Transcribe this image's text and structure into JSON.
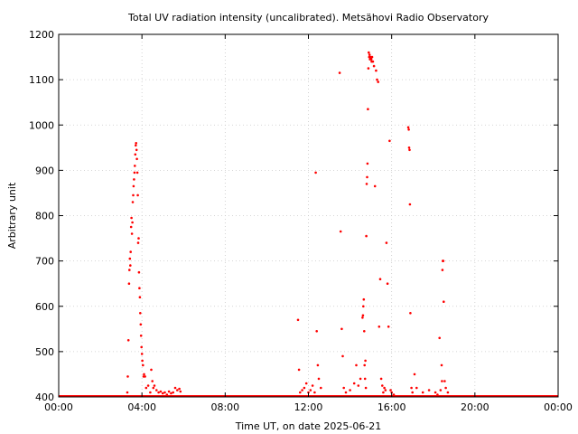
{
  "chart_data": {
    "type": "scatter",
    "title": "Total UV radiation intensity (uncalibrated). Metsähovi Radio Observatory",
    "xlabel": "Time UT, on date 2025-06-21",
    "ylabel": "Arbitrary unit",
    "xlim": [
      0,
      24
    ],
    "ylim": [
      400,
      1200
    ],
    "x_ticks": [
      {
        "value": 0,
        "label": "00:00"
      },
      {
        "value": 4,
        "label": "04:00"
      },
      {
        "value": 8,
        "label": "08:00"
      },
      {
        "value": 12,
        "label": "12:00"
      },
      {
        "value": 16,
        "label": "16:00"
      },
      {
        "value": 20,
        "label": "20:00"
      },
      {
        "value": 24,
        "label": "00:00"
      }
    ],
    "y_ticks": [
      {
        "value": 400,
        "label": "400"
      },
      {
        "value": 500,
        "label": "500"
      },
      {
        "value": 600,
        "label": "600"
      },
      {
        "value": 700,
        "label": "700"
      },
      {
        "value": 800,
        "label": "800"
      },
      {
        "value": 900,
        "label": "900"
      },
      {
        "value": 1000,
        "label": "1000"
      },
      {
        "value": 1100,
        "label": "1100"
      },
      {
        "value": 1200,
        "label": "1200"
      }
    ],
    "grid": true,
    "series_color": "#ff0000",
    "baseline": {
      "value": 402,
      "x_start": 0,
      "x_end": 24
    },
    "series": [
      {
        "points": [
          [
            3.3,
            410
          ],
          [
            3.32,
            445
          ],
          [
            3.35,
            525
          ],
          [
            3.38,
            650
          ],
          [
            3.4,
            680
          ],
          [
            3.42,
            705
          ],
          [
            3.44,
            690
          ],
          [
            3.46,
            720
          ],
          [
            3.48,
            775
          ],
          [
            3.5,
            795
          ],
          [
            3.52,
            760
          ],
          [
            3.54,
            785
          ],
          [
            3.56,
            830
          ],
          [
            3.58,
            845
          ],
          [
            3.6,
            865
          ],
          [
            3.62,
            880
          ],
          [
            3.64,
            895
          ],
          [
            3.66,
            910
          ],
          [
            3.68,
            935
          ],
          [
            3.7,
            955
          ],
          [
            3.72,
            960
          ],
          [
            3.74,
            945
          ],
          [
            3.76,
            925
          ],
          [
            3.78,
            895
          ],
          [
            3.8,
            845
          ],
          [
            3.82,
            740
          ],
          [
            3.84,
            750
          ],
          [
            3.86,
            675
          ],
          [
            3.88,
            640
          ],
          [
            3.9,
            620
          ],
          [
            3.92,
            585
          ],
          [
            3.94,
            560
          ],
          [
            3.96,
            535
          ],
          [
            3.98,
            510
          ],
          [
            4.0,
            495
          ],
          [
            4.02,
            480
          ],
          [
            4.05,
            470
          ],
          [
            4.08,
            445
          ],
          [
            4.1,
            450
          ],
          [
            4.15,
            445
          ],
          [
            4.2,
            420
          ],
          [
            4.3,
            425
          ],
          [
            4.4,
            410
          ],
          [
            4.45,
            460
          ],
          [
            4.5,
            435
          ],
          [
            4.55,
            420
          ],
          [
            4.6,
            425
          ],
          [
            4.7,
            415
          ],
          [
            4.8,
            410
          ],
          [
            4.9,
            412
          ],
          [
            5.0,
            408
          ],
          [
            5.1,
            410
          ],
          [
            5.2,
            405
          ],
          [
            5.3,
            412
          ],
          [
            5.4,
            408
          ],
          [
            5.5,
            410
          ],
          [
            5.6,
            420
          ],
          [
            5.7,
            415
          ],
          [
            5.8,
            418
          ],
          [
            5.85,
            412
          ]
        ]
      },
      {
        "points": [
          [
            11.5,
            570
          ],
          [
            11.55,
            460
          ],
          [
            11.6,
            410
          ],
          [
            11.7,
            415
          ],
          [
            11.8,
            420
          ],
          [
            11.9,
            430
          ],
          [
            12.0,
            410
          ],
          [
            12.1,
            415
          ],
          [
            12.2,
            425
          ],
          [
            12.3,
            410
          ],
          [
            12.35,
            895
          ],
          [
            12.4,
            545
          ],
          [
            12.45,
            470
          ],
          [
            12.5,
            440
          ],
          [
            12.6,
            420
          ],
          [
            13.5,
            1115
          ],
          [
            13.55,
            765
          ],
          [
            13.6,
            550
          ],
          [
            13.65,
            490
          ],
          [
            13.7,
            420
          ],
          [
            13.8,
            410
          ],
          [
            14.0,
            415
          ],
          [
            14.2,
            430
          ],
          [
            14.3,
            470
          ],
          [
            14.4,
            425
          ],
          [
            14.5,
            440
          ],
          [
            14.6,
            575
          ],
          [
            14.62,
            580
          ],
          [
            14.64,
            600
          ],
          [
            14.66,
            615
          ],
          [
            14.68,
            545
          ],
          [
            14.7,
            470
          ],
          [
            14.72,
            440
          ],
          [
            14.74,
            480
          ],
          [
            14.76,
            420
          ],
          [
            14.78,
            755
          ],
          [
            14.8,
            870
          ],
          [
            14.82,
            885
          ],
          [
            14.84,
            915
          ],
          [
            14.86,
            1035
          ],
          [
            14.88,
            1125
          ],
          [
            14.9,
            1160
          ],
          [
            14.92,
            1150
          ],
          [
            14.94,
            1155
          ],
          [
            14.96,
            1145
          ],
          [
            14.98,
            1150
          ],
          [
            15.0,
            1148
          ],
          [
            15.02,
            1145
          ],
          [
            15.04,
            1140
          ],
          [
            15.06,
            1150
          ],
          [
            15.1,
            1140
          ],
          [
            15.15,
            1130
          ],
          [
            15.2,
            865
          ],
          [
            15.25,
            1120
          ],
          [
            15.3,
            1100
          ],
          [
            15.35,
            1095
          ],
          [
            15.4,
            555
          ],
          [
            15.45,
            660
          ],
          [
            15.5,
            440
          ],
          [
            15.55,
            425
          ],
          [
            15.6,
            410
          ],
          [
            15.65,
            420
          ],
          [
            15.7,
            415
          ],
          [
            15.75,
            740
          ],
          [
            15.8,
            650
          ],
          [
            15.85,
            555
          ],
          [
            15.9,
            965
          ],
          [
            15.95,
            415
          ],
          [
            16.0,
            410
          ],
          [
            16.1,
            405
          ],
          [
            16.8,
            995
          ],
          [
            16.82,
            990
          ],
          [
            16.84,
            950
          ],
          [
            16.86,
            945
          ],
          [
            16.88,
            825
          ],
          [
            16.9,
            585
          ],
          [
            16.95,
            420
          ],
          [
            17.0,
            410
          ],
          [
            17.1,
            450
          ],
          [
            17.2,
            420
          ],
          [
            17.5,
            410
          ],
          [
            17.8,
            415
          ],
          [
            18.1,
            410
          ],
          [
            18.2,
            405
          ],
          [
            18.3,
            530
          ],
          [
            18.35,
            415
          ],
          [
            18.4,
            470
          ],
          [
            18.42,
            435
          ],
          [
            18.44,
            680
          ],
          [
            18.46,
            700
          ],
          [
            18.48,
            700
          ],
          [
            18.5,
            610
          ],
          [
            18.55,
            435
          ],
          [
            18.6,
            420
          ],
          [
            18.7,
            410
          ]
        ]
      }
    ]
  }
}
